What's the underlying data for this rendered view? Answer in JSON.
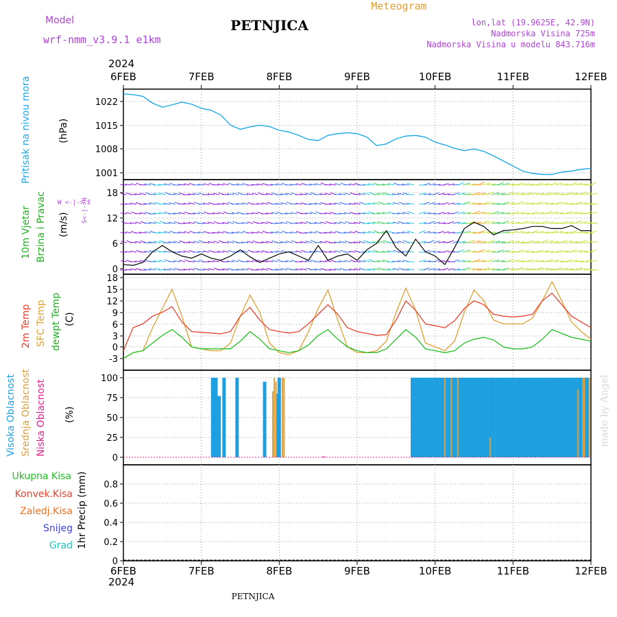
{
  "header": {
    "model_label": "Model",
    "model_name": "wrf-nmm_v3.9.1  e1km",
    "station": "PETNJICA",
    "product": "Meteogram",
    "lonlat": "lon,lat (19.9625E, 42.9N)",
    "altitude": "Nadmorska Visina 725m",
    "model_altitude": "Nadmorska Visina u modelu 843.716m",
    "year_top": "2024",
    "year_bottom": "2024",
    "footer_station": "PETNJICA",
    "credit": "made by Angel"
  },
  "colors": {
    "pressure": "#1ea8e8",
    "temp2m": "#e8402c",
    "sfc_temp": "#e0a030",
    "dewpoint": "#20c020",
    "high_cloud": "#1ea0e0",
    "mid_cloud": "#d8a040",
    "low_cloud": "#e0208a",
    "wind_speed": "#000000",
    "gust": "#e8402c",
    "violet": "#b040d8",
    "green": "#20b020"
  },
  "dates": [
    "6FEB",
    "7FEB",
    "8FEB",
    "9FEB",
    "10FEB",
    "11FEB",
    "12FEB"
  ],
  "panels": {
    "pressure": {
      "label": "Pritisak na nivou mora",
      "unit": "(hPa)",
      "ticks": [
        "1022",
        "1015",
        "1008",
        "1001"
      ]
    },
    "wind": {
      "label1": "10m Vjetar",
      "label2": "Brzina i Pravac",
      "unit": "(m/s)",
      "compass": "W <-|-> E",
      "compass_ns": "S<-|->N",
      "ticks": [
        "18",
        "12",
        "6",
        "0"
      ]
    },
    "temp": {
      "label_2m": "2m Temp",
      "label_sfc": "SFC Temp",
      "label_dew": "dewpt Temp",
      "unit": "(C)",
      "ticks": [
        "18",
        "15",
        "12",
        "9",
        "6",
        "3",
        "0",
        "-3"
      ]
    },
    "cloud": {
      "label_high": "Visoka Oblacnost",
      "label_mid": "Srednja Oblacnost",
      "label_low": "Niska Oblacnost",
      "unit": "(%)",
      "ticks": [
        "100",
        "75",
        "50",
        "25",
        "0"
      ]
    },
    "precip": {
      "label_total": "Ukupna Kisa",
      "label_conv": "Konvek.Kisa",
      "label_frz": "Zaledj.Kisa",
      "label_snow": "Snijeg",
      "label_grad": "Grad",
      "unit": "1hr Precip (mm)",
      "ticks": [
        "0.8",
        "0.6",
        "0.4",
        "0.2",
        "0"
      ]
    }
  },
  "chart_data": [
    {
      "type": "line",
      "panel": "pressure",
      "x_hours": [
        0,
        3,
        6,
        9,
        12,
        15,
        18,
        21,
        24,
        27,
        30,
        33,
        36,
        39,
        42,
        45,
        48,
        51,
        54,
        57,
        60,
        63,
        66,
        69,
        72,
        75,
        78,
        81,
        84,
        87,
        90,
        93,
        96,
        99,
        102,
        105,
        108,
        111,
        114,
        117,
        120,
        123,
        126,
        129,
        132,
        135,
        138,
        141,
        144
      ],
      "series": [
        {
          "name": "Pritisak na nivou mora",
          "values": [
            1024.2,
            1024,
            1023.5,
            1021.5,
            1020.3,
            1021,
            1021.8,
            1021.2,
            1020,
            1019.4,
            1018,
            1015,
            1013.8,
            1014.5,
            1015,
            1014.6,
            1013.5,
            1013,
            1012,
            1010.8,
            1010.5,
            1012,
            1012.5,
            1012.8,
            1012.5,
            1011.5,
            1009,
            1009.5,
            1011,
            1011.8,
            1012,
            1011.5,
            1010,
            1009.2,
            1008.2,
            1007.5,
            1008,
            1007.3,
            1006,
            1004.5,
            1003,
            1001.5,
            1000.8,
            1000.5,
            1000.5,
            1001.2,
            1001.5,
            1002,
            1002.3
          ]
        }
      ],
      "ylim": [
        1000,
        1026
      ]
    },
    {
      "type": "line",
      "panel": "wind",
      "x_hours": [
        0,
        3,
        6,
        9,
        12,
        15,
        18,
        21,
        24,
        27,
        30,
        33,
        36,
        39,
        42,
        45,
        48,
        51,
        54,
        57,
        60,
        63,
        66,
        69,
        72,
        75,
        78,
        81,
        84,
        87,
        90,
        93,
        96,
        99,
        102,
        105,
        108,
        111,
        114,
        117,
        120,
        123,
        126,
        129,
        132,
        135,
        138,
        141,
        144
      ],
      "series": [
        {
          "name": "10m Vjetar",
          "values": [
            1,
            0.8,
            1.5,
            4,
            5.5,
            4,
            3,
            2.5,
            3.5,
            2.5,
            2,
            3,
            4.5,
            2.8,
            1.5,
            2.5,
            3.5,
            4,
            3,
            2,
            5.5,
            2,
            3,
            3.5,
            2,
            4.5,
            6,
            9,
            5,
            3,
            7,
            4,
            3,
            1,
            5,
            9.5,
            11,
            10,
            8,
            9,
            9.2,
            9.5,
            10,
            10,
            9.5,
            9.5,
            10.2,
            9,
            9
          ]
        }
      ],
      "ylim": [
        0,
        20
      ]
    },
    {
      "type": "line",
      "panel": "temp",
      "x_hours": [
        0,
        3,
        6,
        9,
        12,
        15,
        18,
        21,
        24,
        27,
        30,
        33,
        36,
        39,
        42,
        45,
        48,
        51,
        54,
        57,
        60,
        63,
        66,
        69,
        72,
        75,
        78,
        81,
        84,
        87,
        90,
        93,
        96,
        99,
        102,
        105,
        108,
        111,
        114,
        117,
        120,
        123,
        126,
        129,
        132,
        135,
        138,
        141,
        144
      ],
      "series": [
        {
          "name": "2m Temp",
          "values": [
            -1,
            5,
            6,
            8,
            9,
            10.5,
            6.5,
            4,
            3.8,
            3.6,
            3.4,
            4,
            8,
            10.3,
            7,
            4.5,
            4,
            3.6,
            4,
            6,
            8.5,
            11,
            8.5,
            5,
            4,
            3.5,
            3,
            3.2,
            7,
            12,
            9.5,
            6,
            5.5,
            5,
            6.8,
            10,
            12,
            11,
            8.5,
            8,
            7.8,
            8,
            8.5,
            12,
            14,
            11,
            8,
            6.5,
            5
          ]
        },
        {
          "name": "SFC Temp",
          "values": [
            -3,
            -1.5,
            -1,
            5,
            10,
            15,
            8,
            0,
            -0.5,
            -1,
            -1,
            1,
            8,
            13.5,
            9,
            1,
            -1.5,
            -2,
            -1,
            4,
            10,
            14.8,
            7,
            0,
            -1.5,
            -1.5,
            -1,
            1.5,
            9,
            15.3,
            9.5,
            1,
            0,
            -1,
            1.5,
            9,
            14.8,
            12,
            7,
            6,
            6,
            6,
            7.5,
            12,
            17,
            12,
            6.5,
            4,
            2
          ]
        },
        {
          "name": "dewpt Temp",
          "values": [
            -3,
            -1.5,
            -1,
            1,
            3,
            4.5,
            2.5,
            0,
            -0.5,
            -0.5,
            -0.5,
            -0.5,
            1.5,
            4,
            2,
            -0.5,
            -1,
            -1.5,
            -1,
            0.5,
            3,
            4.5,
            2,
            0,
            -1,
            -1.5,
            -1.5,
            -0.5,
            2,
            4.5,
            2.5,
            -0.5,
            -1,
            -1.5,
            -1,
            1,
            2,
            2.5,
            1.8,
            0,
            -0.5,
            -0.5,
            0,
            2,
            4.5,
            3.5,
            2.5,
            2,
            1.5
          ]
        }
      ],
      "ylim": [
        -5,
        18.5
      ]
    },
    {
      "type": "bar",
      "panel": "cloud",
      "series": [
        {
          "name": "Visoka Oblacnost",
          "x_hours": [
            27.5,
            28.5,
            29.5,
            31,
            35,
            43.5,
            47.5,
            48,
            89,
            90,
            91,
            92,
            93,
            94,
            95,
            96,
            97,
            98,
            99,
            100,
            101,
            102,
            103,
            104,
            105,
            106,
            107,
            108,
            109,
            110,
            111,
            112,
            113,
            114,
            115,
            116,
            117,
            118,
            119,
            120,
            121,
            122,
            123,
            124,
            125,
            126,
            127,
            128,
            129,
            130,
            131,
            132,
            133,
            134,
            135,
            136,
            137,
            138,
            139,
            140,
            141,
            142,
            143
          ],
          "values": [
            100,
            100,
            77,
            100,
            100,
            95,
            80,
            100,
            100,
            100,
            100,
            100,
            100,
            100,
            100,
            100,
            100,
            100,
            100,
            100,
            100,
            100,
            100,
            100,
            100,
            100,
            100,
            100,
            100,
            100,
            100,
            100,
            100,
            100,
            100,
            100,
            100,
            100,
            100,
            100,
            100,
            100,
            100,
            100,
            100,
            100,
            100,
            100,
            100,
            100,
            100,
            100,
            100,
            100,
            100,
            100,
            100,
            100,
            100,
            100,
            100,
            100,
            100
          ]
        },
        {
          "name": "Srednja Oblacnost",
          "x_hours": [
            46,
            46.5,
            47,
            49,
            49.5,
            99,
            101,
            103,
            113,
            140,
            141.5,
            142,
            143.5
          ],
          "values": [
            83,
            100,
            95,
            100,
            100,
            100,
            100,
            100,
            25,
            85,
            100,
            100,
            100
          ]
        },
        {
          "name": "Niska Oblacnost",
          "x_hours": [
            61.5,
            62
          ],
          "values": [
            1,
            1
          ]
        }
      ],
      "ylim": [
        0,
        100
      ]
    },
    {
      "type": "bar",
      "panel": "precip",
      "series": [
        {
          "name": "Ukupna Kisa",
          "values": []
        },
        {
          "name": "Konvek.Kisa",
          "values": []
        },
        {
          "name": "Zaledj.Kisa",
          "values": []
        },
        {
          "name": "Snijeg",
          "values": []
        },
        {
          "name": "Grad",
          "values": []
        }
      ],
      "ylim": [
        0,
        1
      ]
    }
  ]
}
